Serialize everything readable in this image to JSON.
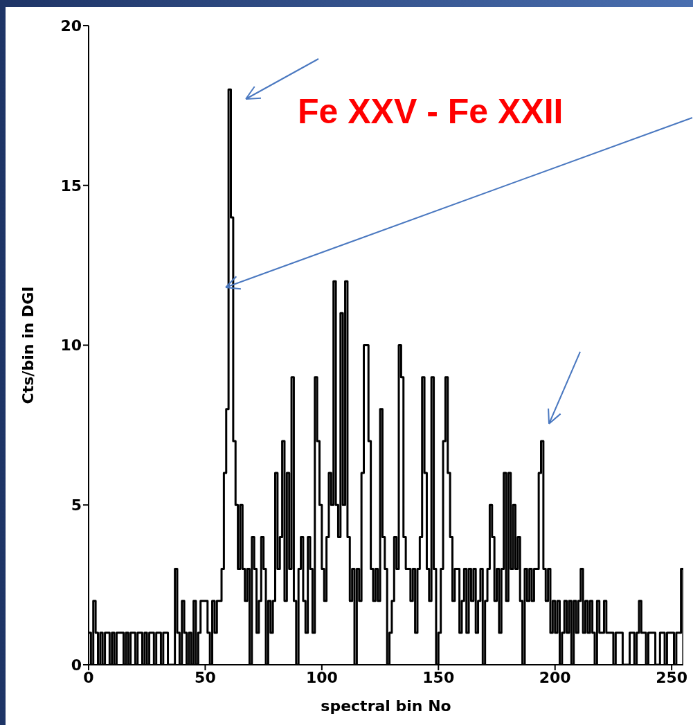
{
  "chart_data": {
    "type": "step",
    "xlabel": "spectral bin No",
    "ylabel": "Cts/bin in DGI",
    "annotations": [
      "Fe XXV - Fe XXII"
    ],
    "color": "#000000",
    "xlim": [
      0,
      255
    ],
    "ylim": [
      0,
      20
    ],
    "xticks": [
      0,
      50,
      100,
      150,
      200,
      250
    ],
    "yticks": [
      0,
      5,
      10,
      15,
      20
    ],
    "x": [
      0,
      1,
      2,
      3,
      4,
      5,
      6,
      7,
      8,
      9,
      10,
      11,
      12,
      13,
      14,
      15,
      16,
      17,
      18,
      19,
      20,
      21,
      22,
      23,
      24,
      25,
      26,
      27,
      28,
      29,
      30,
      31,
      32,
      33,
      34,
      35,
      36,
      37,
      38,
      39,
      40,
      41,
      42,
      43,
      44,
      45,
      46,
      47,
      48,
      49,
      50,
      51,
      52,
      53,
      54,
      55,
      56,
      57,
      58,
      59,
      60,
      61,
      62,
      63,
      64,
      65,
      66,
      67,
      68,
      69,
      70,
      71,
      72,
      73,
      74,
      75,
      76,
      77,
      78,
      79,
      80,
      81,
      82,
      83,
      84,
      85,
      86,
      87,
      88,
      89,
      90,
      91,
      92,
      93,
      94,
      95,
      96,
      97,
      98,
      99,
      100,
      101,
      102,
      103,
      104,
      105,
      106,
      107,
      108,
      109,
      110,
      111,
      112,
      113,
      114,
      115,
      116,
      117,
      118,
      119,
      120,
      121,
      122,
      123,
      124,
      125,
      126,
      127,
      128,
      129,
      130,
      131,
      132,
      133,
      134,
      135,
      136,
      137,
      138,
      139,
      140,
      141,
      142,
      143,
      144,
      145,
      146,
      147,
      148,
      149,
      150,
      151,
      152,
      153,
      154,
      155,
      156,
      157,
      158,
      159,
      160,
      161,
      162,
      163,
      164,
      165,
      166,
      167,
      168,
      169,
      170,
      171,
      172,
      173,
      174,
      175,
      176,
      177,
      178,
      179,
      180,
      181,
      182,
      183,
      184,
      185,
      186,
      187,
      188,
      189,
      190,
      191,
      192,
      193,
      194,
      195,
      196,
      197,
      198,
      199,
      200,
      201,
      202,
      203,
      204,
      205,
      206,
      207,
      208,
      209,
      210,
      211,
      212,
      213,
      214,
      215,
      216,
      217,
      218,
      219,
      220,
      221,
      222,
      223,
      224,
      225,
      226,
      227,
      228,
      229,
      230,
      231,
      232,
      233,
      234,
      235,
      236,
      237,
      238,
      239,
      240,
      241,
      242,
      243,
      244,
      245,
      246,
      247,
      248,
      249,
      250,
      251,
      252,
      253,
      254,
      255
    ],
    "values": [
      1,
      0,
      2,
      1,
      0,
      1,
      0,
      1,
      1,
      0,
      1,
      0,
      1,
      1,
      1,
      0,
      1,
      0,
      1,
      1,
      0,
      1,
      1,
      0,
      1,
      0,
      1,
      1,
      0,
      1,
      1,
      0,
      1,
      1,
      0,
      0,
      0,
      3,
      1,
      0,
      2,
      1,
      0,
      1,
      0,
      2,
      0,
      1,
      2,
      2,
      2,
      1,
      0,
      2,
      1,
      2,
      2,
      3,
      6,
      8,
      18,
      14,
      7,
      5,
      3,
      5,
      3,
      2,
      3,
      0,
      4,
      3,
      1,
      2,
      4,
      3,
      0,
      2,
      1,
      2,
      6,
      3,
      4,
      7,
      2,
      6,
      3,
      9,
      2,
      0,
      3,
      4,
      2,
      1,
      4,
      3,
      1,
      9,
      7,
      5,
      3,
      2,
      4,
      6,
      5,
      12,
      5,
      4,
      11,
      5,
      12,
      4,
      2,
      3,
      0,
      3,
      2,
      6,
      10,
      10,
      7,
      3,
      2,
      3,
      2,
      8,
      4,
      3,
      0,
      1,
      2,
      4,
      3,
      10,
      9,
      4,
      3,
      3,
      2,
      3,
      1,
      3,
      4,
      9,
      6,
      3,
      2,
      9,
      3,
      0,
      1,
      3,
      7,
      9,
      6,
      4,
      2,
      3,
      3,
      1,
      2,
      3,
      1,
      3,
      2,
      3,
      1,
      2,
      3,
      0,
      2,
      3,
      5,
      4,
      2,
      3,
      1,
      3,
      6,
      2,
      6,
      3,
      5,
      3,
      4,
      2,
      0,
      3,
      2,
      3,
      2,
      3,
      3,
      6,
      7,
      3,
      2,
      3,
      1,
      2,
      1,
      2,
      0,
      1,
      2,
      1,
      2,
      0,
      2,
      1,
      2,
      3,
      1,
      2,
      1,
      2,
      1,
      0,
      2,
      1,
      1,
      2,
      1,
      1,
      1,
      0,
      1,
      1,
      1,
      0,
      0,
      0,
      1,
      1,
      0,
      1,
      2,
      1,
      1,
      0,
      1,
      1,
      1,
      0,
      0,
      1,
      1,
      0,
      1,
      1,
      1,
      0,
      1,
      1,
      3,
      0
    ]
  }
}
